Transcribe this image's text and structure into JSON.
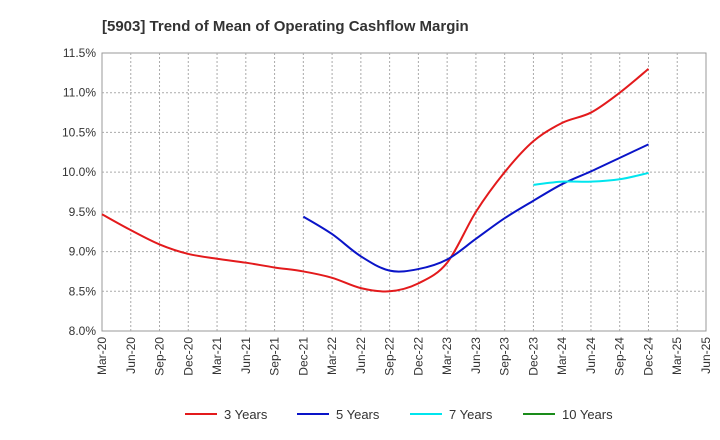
{
  "chart_data": {
    "type": "line",
    "title": "[5903]  Trend of Mean of Operating Cashflow Margin",
    "xlabel": "",
    "ylabel": "",
    "ylim": [
      8.0,
      11.5
    ],
    "yticks": [
      "8.0%",
      "8.5%",
      "9.0%",
      "9.5%",
      "10.0%",
      "10.5%",
      "11.0%",
      "11.5%"
    ],
    "categories": [
      "Mar-20",
      "Jun-20",
      "Sep-20",
      "Dec-20",
      "Mar-21",
      "Jun-21",
      "Sep-21",
      "Dec-21",
      "Mar-22",
      "Jun-22",
      "Sep-22",
      "Dec-22",
      "Mar-23",
      "Jun-23",
      "Sep-23",
      "Dec-23",
      "Mar-24",
      "Jun-24",
      "Sep-24",
      "Dec-24",
      "Mar-25",
      "Jun-25"
    ],
    "grid": true,
    "legend_position": "bottom",
    "series": [
      {
        "name": "3 Years",
        "color": "#e31a1c",
        "values": [
          9.47,
          9.27,
          9.09,
          8.97,
          8.91,
          8.86,
          8.8,
          8.75,
          8.67,
          8.54,
          8.5,
          8.6,
          8.86,
          9.5,
          10.0,
          10.39,
          10.62,
          10.75,
          11.0,
          11.3,
          null,
          null
        ]
      },
      {
        "name": "5 Years",
        "color": "#0a14c8",
        "values": [
          null,
          null,
          null,
          null,
          null,
          null,
          null,
          9.44,
          9.22,
          8.94,
          8.76,
          8.78,
          8.9,
          9.16,
          9.42,
          9.64,
          9.85,
          10.01,
          10.18,
          10.35,
          null,
          null
        ]
      },
      {
        "name": "7 Years",
        "color": "#00e5ee",
        "values": [
          null,
          null,
          null,
          null,
          null,
          null,
          null,
          null,
          null,
          null,
          null,
          null,
          null,
          null,
          null,
          9.84,
          9.88,
          9.88,
          9.91,
          9.99,
          null,
          null
        ]
      },
      {
        "name": "10 Years",
        "color": "#1a8c1a",
        "values": [
          null,
          null,
          null,
          null,
          null,
          null,
          null,
          null,
          null,
          null,
          null,
          null,
          null,
          null,
          null,
          null,
          null,
          null,
          null,
          null,
          null,
          null
        ]
      }
    ]
  }
}
